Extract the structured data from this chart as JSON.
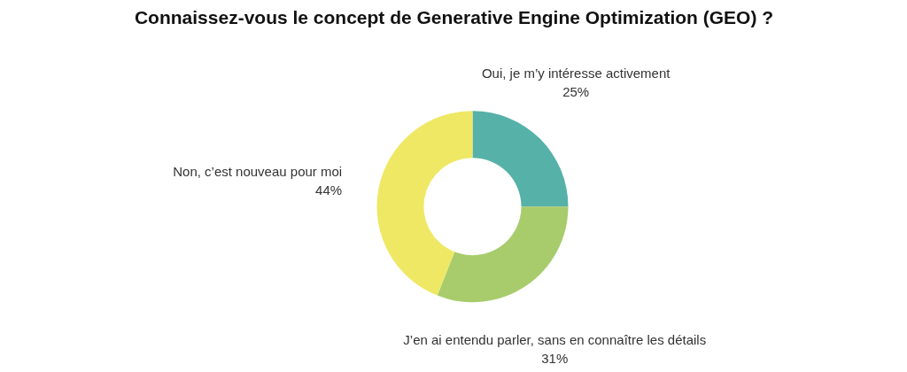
{
  "chart_data": {
    "type": "donut",
    "title": "Connaissez-vous le concept de Generative Engine Optimization (GEO) ?",
    "categories": [
      "Oui, je m’y intéresse activement",
      "J’en ai entendu parler, sans en connaître les détails",
      "Non, c’est nouveau pour moi"
    ],
    "values": [
      25,
      31,
      44
    ],
    "value_labels": [
      "25%",
      "31%",
      "44%"
    ],
    "colors": [
      "#56b1a8",
      "#a8cc6c",
      "#efe865"
    ]
  }
}
